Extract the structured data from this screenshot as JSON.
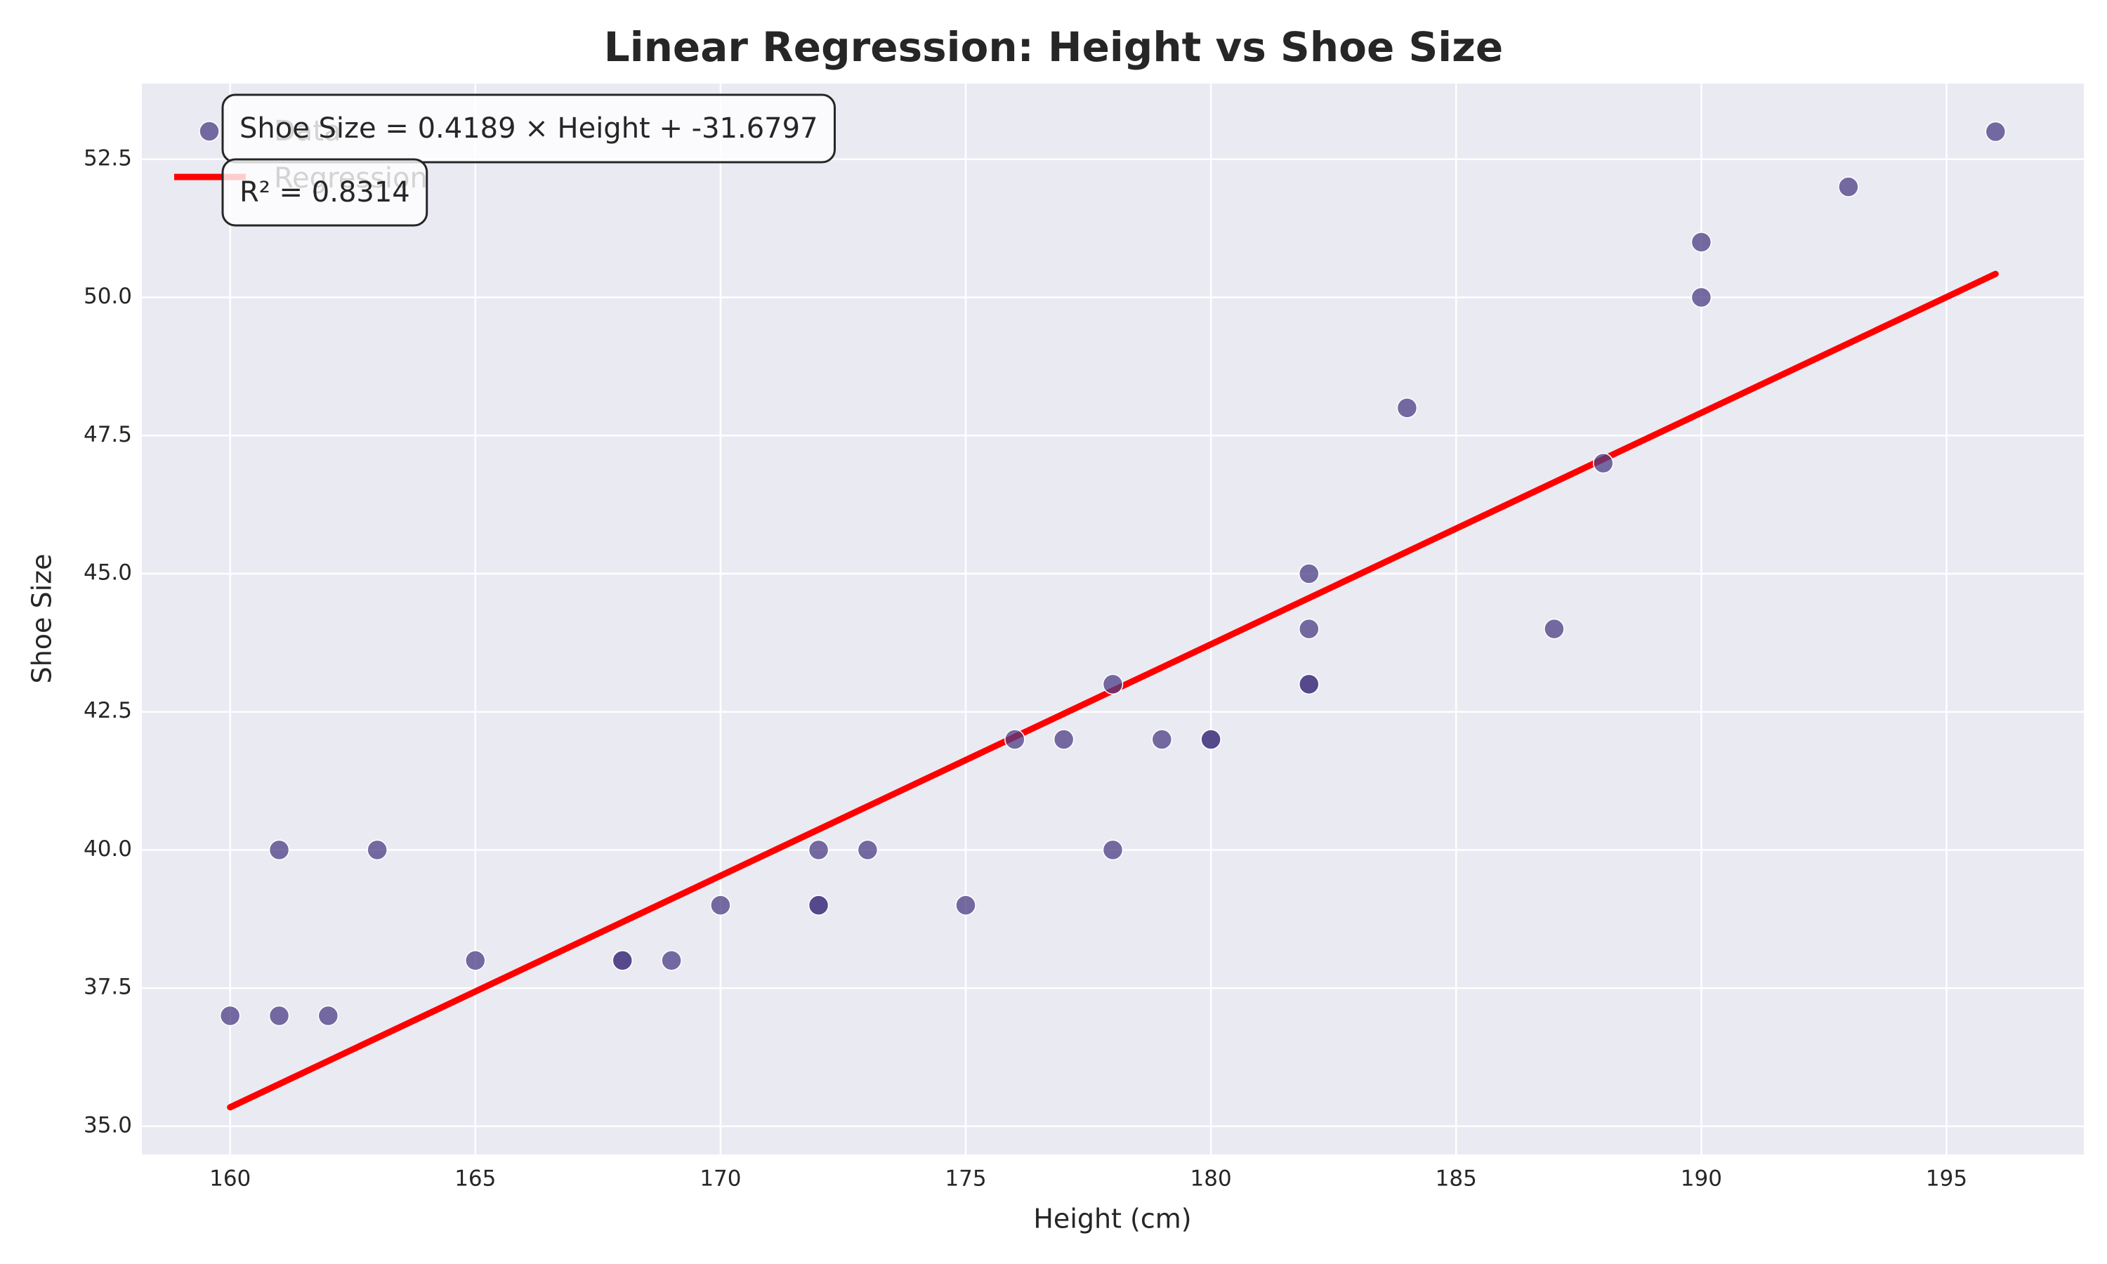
{
  "chart_data": {
    "type": "scatter",
    "title": "Linear Regression: Height vs Shoe Size",
    "x_label": "Height (cm)",
    "y_label": "Shoe Size",
    "series": [
      {
        "name": "Data",
        "color": "#4b3d84",
        "x": [
          160,
          161,
          161,
          162,
          163,
          165,
          168,
          168,
          169,
          170,
          172,
          172,
          172,
          173,
          175,
          176,
          177,
          178,
          178,
          179,
          180,
          180,
          182,
          182,
          182,
          182,
          184,
          187,
          188,
          190,
          190,
          193,
          196
        ],
        "values": [
          37,
          40,
          37,
          37,
          40,
          38,
          38,
          38,
          38,
          39,
          40,
          39,
          39,
          40,
          39,
          42,
          42,
          43,
          40,
          42,
          42,
          42,
          45,
          44,
          43,
          43,
          48,
          44,
          47,
          51,
          50,
          52,
          53
        ]
      },
      {
        "name": "Regression",
        "color": "#ff0000",
        "x": [
          160,
          196
        ],
        "values": [
          35.3443,
          50.4247
        ]
      }
    ],
    "annotations": [
      "Shoe Size = 0.4189 × Height + -31.6797",
      "R² = 0.8314"
    ],
    "xlim": [
      158.2,
      197.8
    ],
    "ylim": [
      34.49,
      53.87
    ],
    "xticks": [
      160,
      165,
      170,
      175,
      180,
      185,
      190,
      195
    ],
    "yticks": [
      {
        "value": 35,
        "label": "35.0"
      },
      37.5,
      {
        "value": 40,
        "label": "40.0"
      },
      42.5,
      {
        "value": 45,
        "label": "45.0"
      },
      47.5,
      {
        "value": 50,
        "label": "50.0"
      },
      52.5
    ],
    "grid": true,
    "legend": "upper left"
  }
}
